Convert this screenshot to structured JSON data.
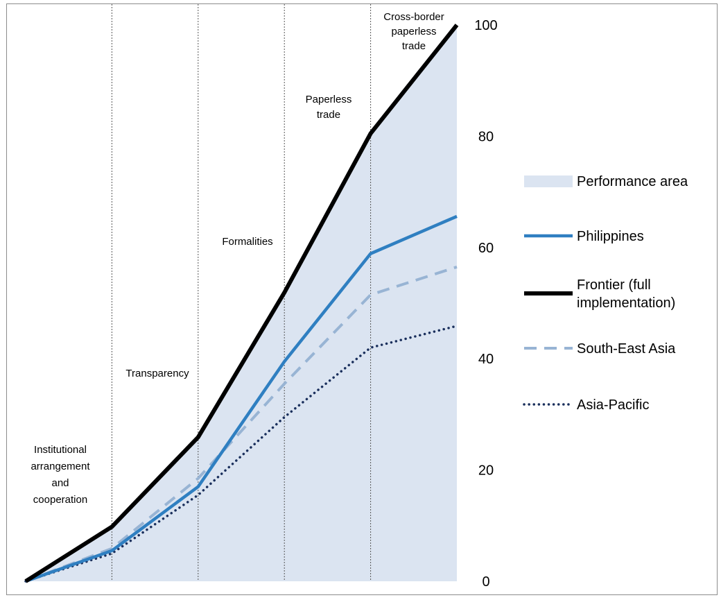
{
  "chart_data": {
    "type": "area",
    "stages": [
      {
        "lines": [
          "Institutional",
          "arrangement",
          "and",
          "cooperation"
        ]
      },
      {
        "lines": [
          "Transparency"
        ]
      },
      {
        "lines": [
          "Formalities"
        ]
      },
      {
        "lines": [
          "Paperless",
          "trade"
        ]
      },
      {
        "lines": [
          "Cross-border",
          "paperless",
          "trade"
        ]
      }
    ],
    "x": [
      0,
      1,
      2,
      3,
      4,
      5
    ],
    "series": [
      {
        "name": "Frontier (full implementation)",
        "legend_lines": [
          "Frontier (full",
          "implementation)"
        ],
        "values": [
          0,
          9.8,
          25.9,
          51.9,
          80.5,
          100
        ],
        "color": "#000000",
        "style": "solid"
      },
      {
        "name": "Philippines",
        "legend_lines": [
          "Philippines"
        ],
        "values": [
          0,
          5.5,
          17,
          39.5,
          58.9,
          65.6
        ],
        "color": "#2f7fc1",
        "style": "solid"
      },
      {
        "name": "South-East Asia",
        "legend_lines": [
          "South-East Asia"
        ],
        "values": [
          0,
          5.9,
          18.5,
          35.5,
          51.5,
          56.5
        ],
        "color": "#98b4d4",
        "style": "dashed"
      },
      {
        "name": "Asia-Pacific",
        "legend_lines": [
          "Asia-Pacific"
        ],
        "values": [
          0,
          5,
          15.5,
          29.5,
          42,
          45.9
        ],
        "color": "#1a2f5c",
        "style": "dotted"
      }
    ],
    "area": {
      "name": "Performance area",
      "legend_lines": [
        "Performance area"
      ],
      "fill": "#dbe4f1"
    },
    "yaxis": {
      "position": "right",
      "ylim": [
        0,
        100
      ],
      "ticks": [
        0,
        20,
        40,
        60,
        80,
        100
      ]
    },
    "grid": {
      "vertical_separators": true,
      "horizontal": false
    },
    "legend_position": "right"
  }
}
